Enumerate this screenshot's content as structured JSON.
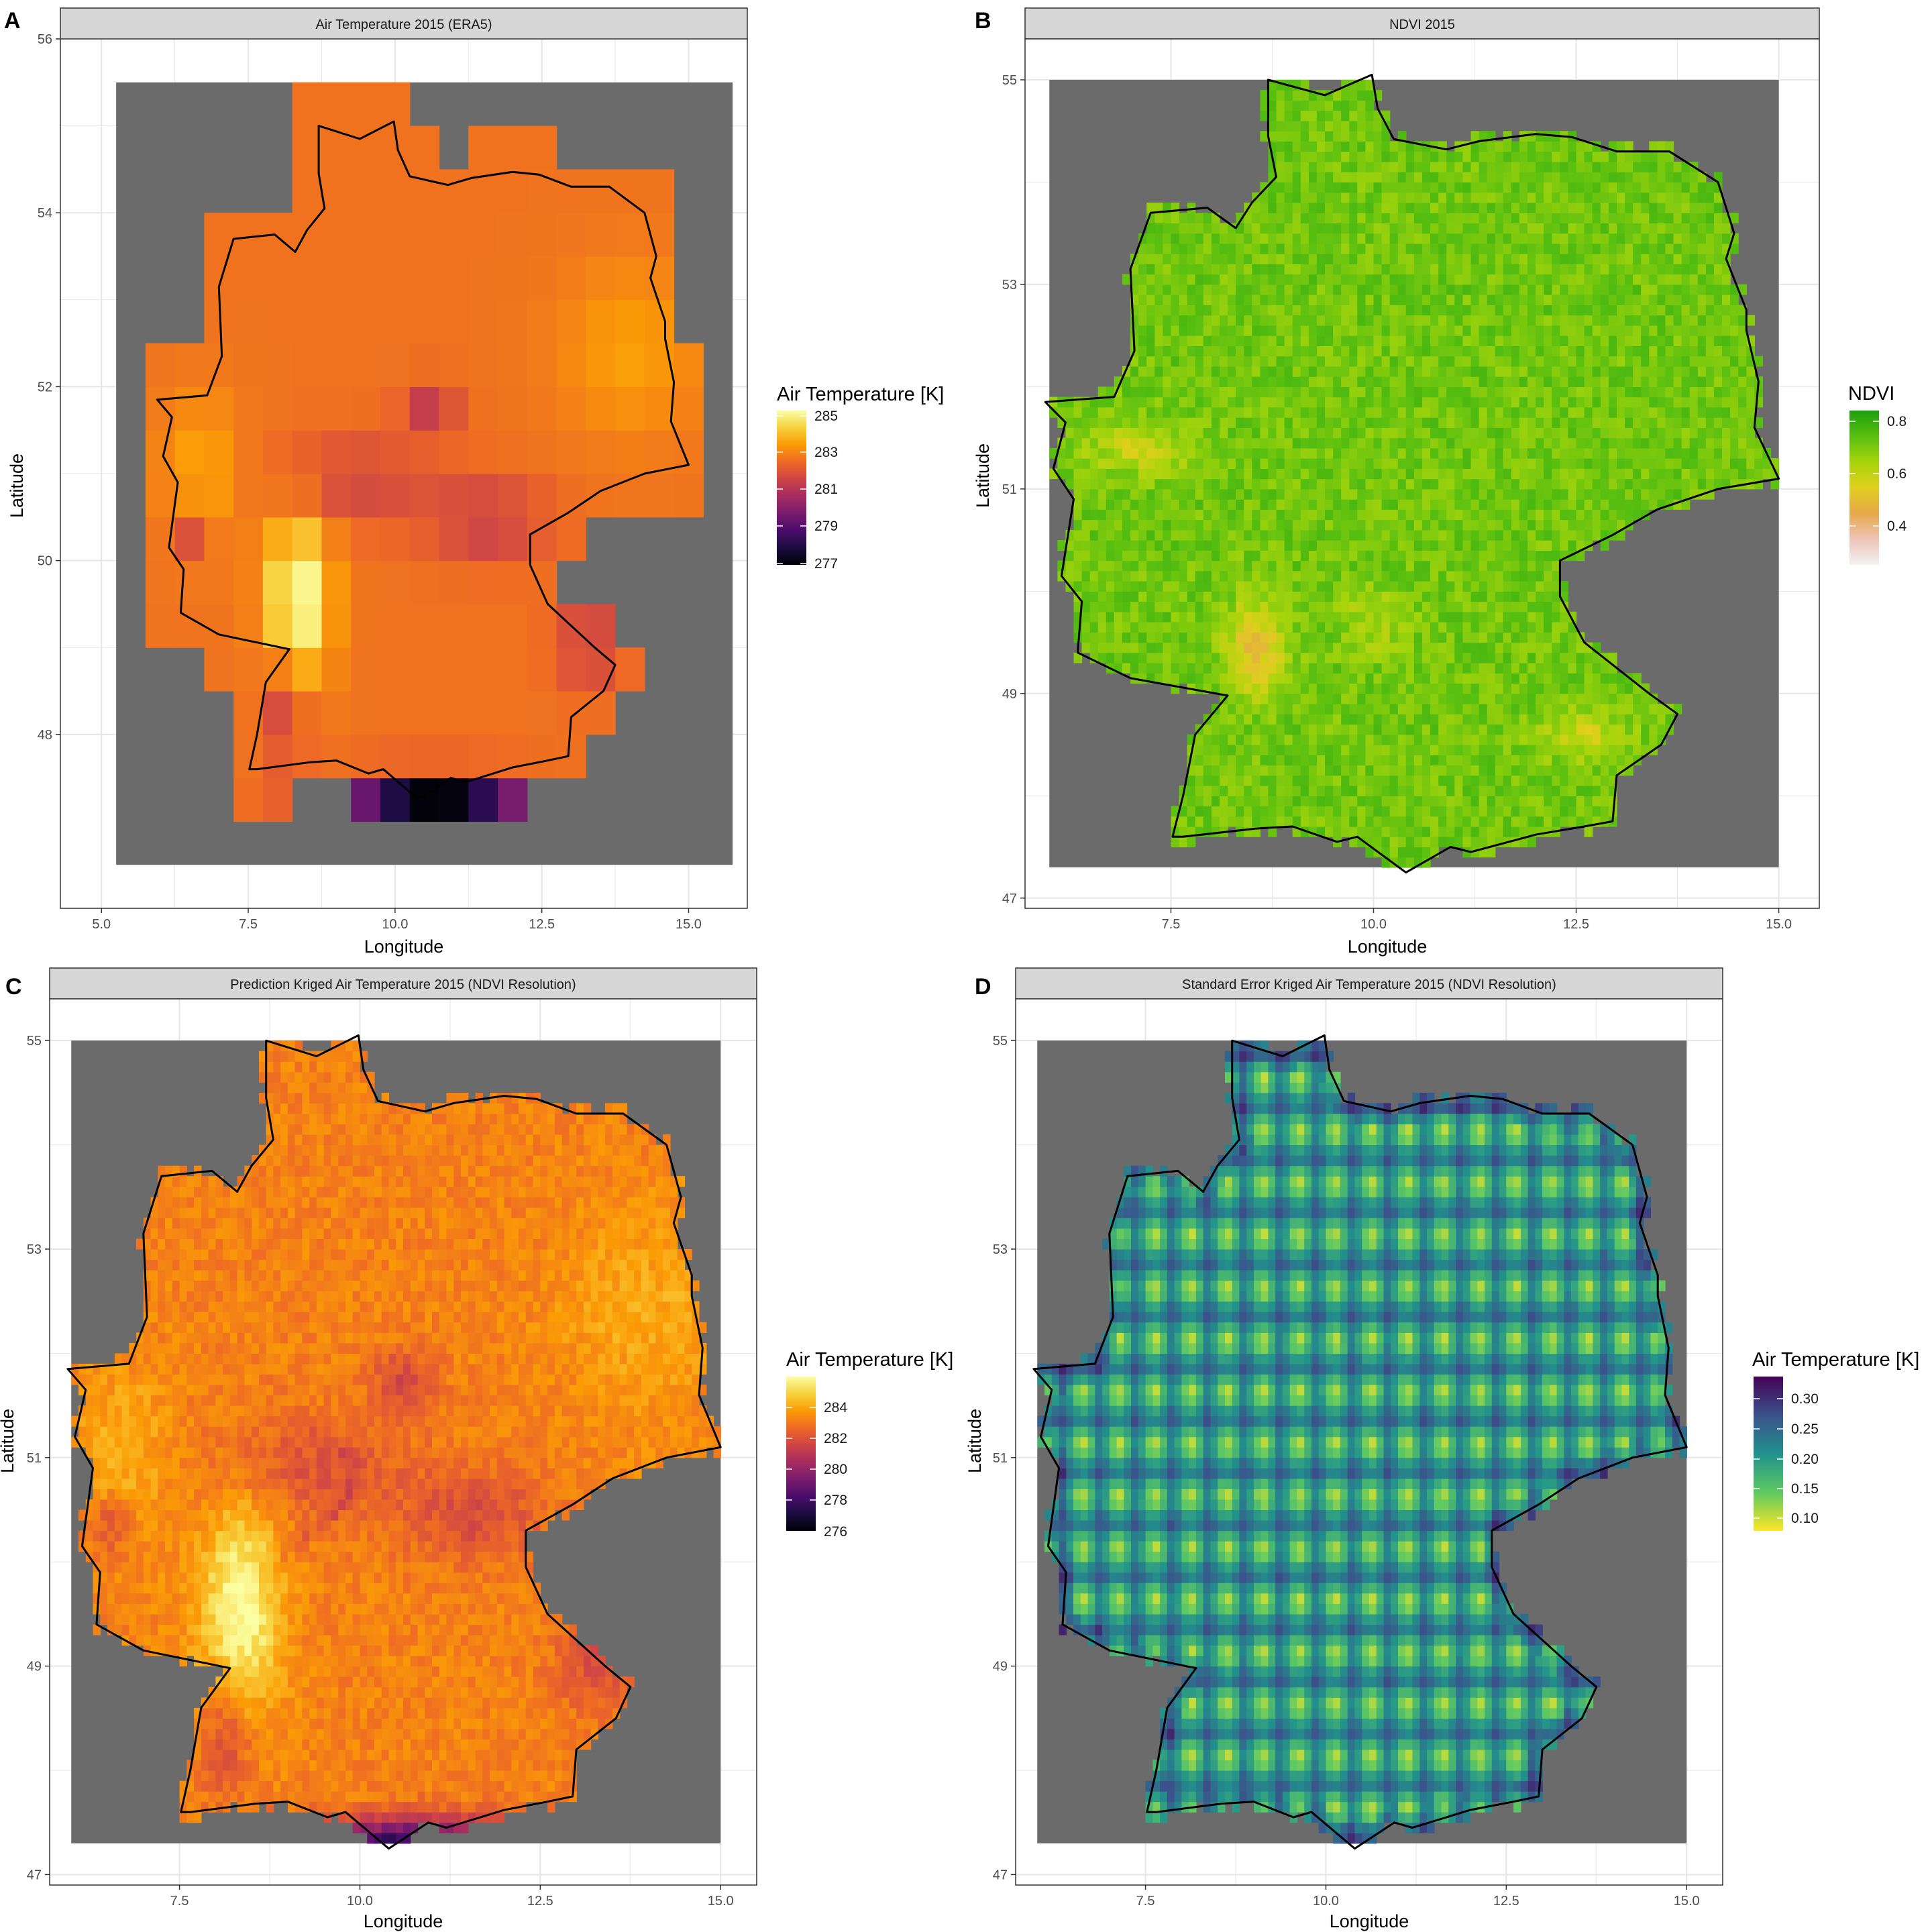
{
  "colors": {
    "na_fill": "#6b6b6b",
    "strip_fill": "#d6d6d6",
    "grid": "#e6e6e6",
    "border": "#333333",
    "outline": "#000000"
  },
  "germany_outline_lonlat": [
    [
      8.7,
      55.0
    ],
    [
      9.4,
      54.85
    ],
    [
      9.98,
      55.05
    ],
    [
      10.05,
      54.72
    ],
    [
      10.25,
      54.42
    ],
    [
      10.9,
      54.32
    ],
    [
      11.3,
      54.4
    ],
    [
      12.0,
      54.47
    ],
    [
      12.45,
      54.44
    ],
    [
      13.0,
      54.3
    ],
    [
      13.65,
      54.3
    ],
    [
      14.25,
      54.0
    ],
    [
      14.45,
      53.5
    ],
    [
      14.35,
      53.25
    ],
    [
      14.6,
      52.75
    ],
    [
      14.6,
      52.55
    ],
    [
      14.75,
      52.05
    ],
    [
      14.7,
      51.6
    ],
    [
      15.0,
      51.1
    ],
    [
      14.25,
      51.0
    ],
    [
      13.5,
      50.8
    ],
    [
      12.95,
      50.55
    ],
    [
      12.3,
      50.3
    ],
    [
      12.3,
      49.95
    ],
    [
      12.6,
      49.5
    ],
    [
      13.4,
      49.0
    ],
    [
      13.75,
      48.8
    ],
    [
      13.55,
      48.5
    ],
    [
      13.0,
      48.2
    ],
    [
      12.95,
      47.75
    ],
    [
      12.6,
      47.7
    ],
    [
      12.0,
      47.62
    ],
    [
      11.2,
      47.45
    ],
    [
      10.95,
      47.5
    ],
    [
      10.4,
      47.25
    ],
    [
      9.8,
      47.6
    ],
    [
      9.55,
      47.55
    ],
    [
      9.0,
      47.7
    ],
    [
      8.55,
      47.68
    ],
    [
      7.65,
      47.6
    ],
    [
      7.52,
      47.6
    ],
    [
      7.65,
      48.0
    ],
    [
      7.8,
      48.6
    ],
    [
      8.2,
      48.98
    ],
    [
      7.0,
      49.15
    ],
    [
      6.35,
      49.4
    ],
    [
      6.4,
      49.9
    ],
    [
      6.15,
      50.15
    ],
    [
      6.3,
      50.9
    ],
    [
      6.05,
      51.2
    ],
    [
      6.2,
      51.65
    ],
    [
      5.95,
      51.85
    ],
    [
      6.8,
      51.9
    ],
    [
      7.05,
      52.35
    ],
    [
      7.0,
      53.15
    ],
    [
      7.25,
      53.7
    ],
    [
      7.95,
      53.75
    ],
    [
      8.3,
      53.55
    ],
    [
      8.5,
      53.8
    ],
    [
      8.8,
      54.05
    ],
    [
      8.7,
      54.45
    ],
    [
      8.7,
      55.0
    ]
  ],
  "panels": [
    {
      "id": "A",
      "title": "Air Temperature 2015 (ERA5)",
      "xlabel": "Longitude",
      "ylabel": "Latitude",
      "x_ticks": [
        "5.0",
        "7.5",
        "10.0",
        "12.5",
        "15.0"
      ],
      "y_ticks": [
        "48",
        "50",
        "52",
        "54",
        "56"
      ],
      "legend": {
        "title": "Air Temperature [K]",
        "ticks": [
          "285",
          "283",
          "281",
          "279",
          "277"
        ],
        "colors": [
          "#fcffa4",
          "#f7d13d",
          "#fb9b06",
          "#ed6925",
          "#cf4446",
          "#a52c60",
          "#781c6d",
          "#4a0c6b",
          "#1b0c41",
          "#000004"
        ]
      },
      "chart_data": {
        "type": "heatmap",
        "variable": "air temperature (K)",
        "resolution": "0.25 deg grid",
        "xlim": [
          4.3,
          16.0
        ],
        "ylim": [
          46.0,
          56.0
        ],
        "background_extent": {
          "lon": [
            5.25,
            15.75
          ],
          "lat": [
            46.5,
            55.5
          ]
        },
        "value_range": [
          277,
          285
        ],
        "pattern": "warmest (~284-285 K) along the Rhine valley in the south-west, ~282-283 K over most lowland areas, coolest (~277-278 K) at the Alpine border cells near 47.25 N; values grade from ~282.5 K in the north to ~281 K in the central uplands",
        "grid_values": "shown as a coarse raster of values 277-285 K covering Germany"
      }
    },
    {
      "id": "B",
      "title": "NDVI 2015",
      "xlabel": "Longitude",
      "ylabel": "Latitude",
      "x_ticks": [
        "7.5",
        "10.0",
        "12.5",
        "15.0"
      ],
      "y_ticks": [
        "47",
        "49",
        "51",
        "53",
        "55"
      ],
      "legend": {
        "title": "NDVI",
        "ticks": [
          "0.8",
          "0.6",
          "0.4"
        ],
        "colors": [
          "#1e9e0f",
          "#58bf10",
          "#a6d40c",
          "#e1cf1e",
          "#e6a84a",
          "#eec4b8",
          "#f2f2f2"
        ]
      },
      "chart_data": {
        "type": "heatmap",
        "variable": "NDVI",
        "xlim": [
          5.7,
          15.5
        ],
        "ylim": [
          46.9,
          55.4
        ],
        "background_extent": {
          "lon": [
            6.0,
            15.0
          ],
          "lat": [
            47.3,
            55.0
          ]
        },
        "value_range": [
          0.3,
          0.85
        ],
        "pattern": "mostly 0.65-0.8 (green) across Germany; lower values 0.45-0.55 in urban / Rhine-Ruhr and Upper Rhine areas"
      }
    },
    {
      "id": "C",
      "title": "Prediction Kriged Air Temperature 2015 (NDVI Resolution)",
      "xlabel": "Longitude",
      "ylabel": "Latitude",
      "x_ticks": [
        "7.5",
        "10.0",
        "12.5",
        "15.0"
      ],
      "y_ticks": [
        "47",
        "49",
        "51",
        "53",
        "55"
      ],
      "legend": {
        "title": "Air Temperature [K]",
        "ticks": [
          "284",
          "282",
          "280",
          "278",
          "276"
        ],
        "colors": [
          "#fcffa4",
          "#f7d13d",
          "#fb9b06",
          "#ed6925",
          "#cf4446",
          "#a52c60",
          "#781c6d",
          "#4a0c6b",
          "#1b0c41",
          "#000004"
        ]
      },
      "chart_data": {
        "type": "heatmap",
        "variable": "kriged air temperature (K)",
        "xlim": [
          5.7,
          15.5
        ],
        "ylim": [
          46.9,
          55.4
        ],
        "background_extent": {
          "lon": [
            6.0,
            15.0
          ],
          "lat": [
            47.3,
            55.0
          ]
        },
        "value_range": [
          276,
          285
        ],
        "pattern": "warm (~284-285 K) along the Upper Rhine valley, ~282-283 K across the northern lowlands, cooler (~279-281 K) over the central uplands (Harz, Eifel, Black Forest), coldest (~276 K) along the Alpine border"
      }
    },
    {
      "id": "D",
      "title": "Standard Error Kriged Air Temperature 2015 (NDVI Resolution)",
      "xlabel": "Longitude",
      "ylabel": "Latitude",
      "x_ticks": [
        "7.5",
        "10.0",
        "12.5",
        "15.0"
      ],
      "y_ticks": [
        "47",
        "49",
        "51",
        "53",
        "55"
      ],
      "legend": {
        "title": "Air Temperature [K]",
        "ticks": [
          "0.30",
          "0.25",
          "0.20",
          "0.15",
          "0.10"
        ],
        "colors": [
          "#440154",
          "#3b528b",
          "#21918c",
          "#5ec962",
          "#fde725"
        ]
      },
      "chart_data": {
        "type": "heatmap",
        "variable": "kriging standard error (K)",
        "xlim": [
          5.7,
          15.5
        ],
        "ylim": [
          46.9,
          55.4
        ],
        "background_extent": {
          "lon": [
            6.0,
            15.0
          ],
          "lat": [
            47.3,
            55.0
          ]
        },
        "value_range": [
          0.08,
          0.33
        ],
        "pattern": "regular grid: minimum error (~0.08-0.10) at ERA5 cell centres every 0.5 deg, rising to ~0.22-0.28 between them; highest values near the borders"
      }
    }
  ]
}
